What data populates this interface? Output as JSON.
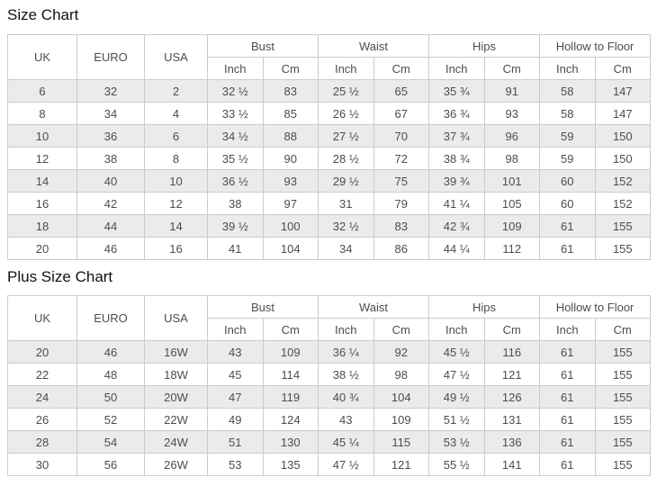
{
  "colors": {
    "row_alt_background": "#ebebeb",
    "table_border": "#cccccc",
    "table_text": "#4d4d4d",
    "title_text": "#111111",
    "page_background": "#ffffff"
  },
  "tables": [
    {
      "title": "Size Chart",
      "size_headers": [
        "UK",
        "EURO",
        "USA"
      ],
      "measurement_groups": [
        "Bust",
        "Waist",
        "Hips",
        "Hollow to Floor"
      ],
      "unit_headers": [
        "Inch",
        "Cm"
      ],
      "rows": [
        [
          "6",
          "32",
          "2",
          "32 ½",
          "83",
          "25 ½",
          "65",
          "35 ¾",
          "91",
          "58",
          "147"
        ],
        [
          "8",
          "34",
          "4",
          "33 ½",
          "85",
          "26 ½",
          "67",
          "36 ¾",
          "93",
          "58",
          "147"
        ],
        [
          "10",
          "36",
          "6",
          "34 ½",
          "88",
          "27 ½",
          "70",
          "37 ¾",
          "96",
          "59",
          "150"
        ],
        [
          "12",
          "38",
          "8",
          "35 ½",
          "90",
          "28 ½",
          "72",
          "38 ¾",
          "98",
          "59",
          "150"
        ],
        [
          "14",
          "40",
          "10",
          "36 ½",
          "93",
          "29 ½",
          "75",
          "39 ¾",
          "101",
          "60",
          "152"
        ],
        [
          "16",
          "42",
          "12",
          "38",
          "97",
          "31",
          "79",
          "41 ¼",
          "105",
          "60",
          "152"
        ],
        [
          "18",
          "44",
          "14",
          "39 ½",
          "100",
          "32 ½",
          "83",
          "42 ¾",
          "109",
          "61",
          "155"
        ],
        [
          "20",
          "46",
          "16",
          "41",
          "104",
          "34",
          "86",
          "44 ¼",
          "112",
          "61",
          "155"
        ]
      ]
    },
    {
      "title": "Plus Size Chart",
      "size_headers": [
        "UK",
        "EURO",
        "USA"
      ],
      "measurement_groups": [
        "Bust",
        "Waist",
        "Hips",
        "Hollow to Floor"
      ],
      "unit_headers": [
        "Inch",
        "Cm"
      ],
      "rows": [
        [
          "20",
          "46",
          "16W",
          "43",
          "109",
          "36 ¼",
          "92",
          "45 ½",
          "116",
          "61",
          "155"
        ],
        [
          "22",
          "48",
          "18W",
          "45",
          "114",
          "38 ½",
          "98",
          "47 ½",
          "121",
          "61",
          "155"
        ],
        [
          "24",
          "50",
          "20W",
          "47",
          "119",
          "40 ¾",
          "104",
          "49 ½",
          "126",
          "61",
          "155"
        ],
        [
          "26",
          "52",
          "22W",
          "49",
          "124",
          "43",
          "109",
          "51 ½",
          "131",
          "61",
          "155"
        ],
        [
          "28",
          "54",
          "24W",
          "51",
          "130",
          "45 ¼",
          "115",
          "53 ½",
          "136",
          "61",
          "155"
        ],
        [
          "30",
          "56",
          "26W",
          "53",
          "135",
          "47 ½",
          "121",
          "55 ½",
          "141",
          "61",
          "155"
        ]
      ]
    }
  ]
}
